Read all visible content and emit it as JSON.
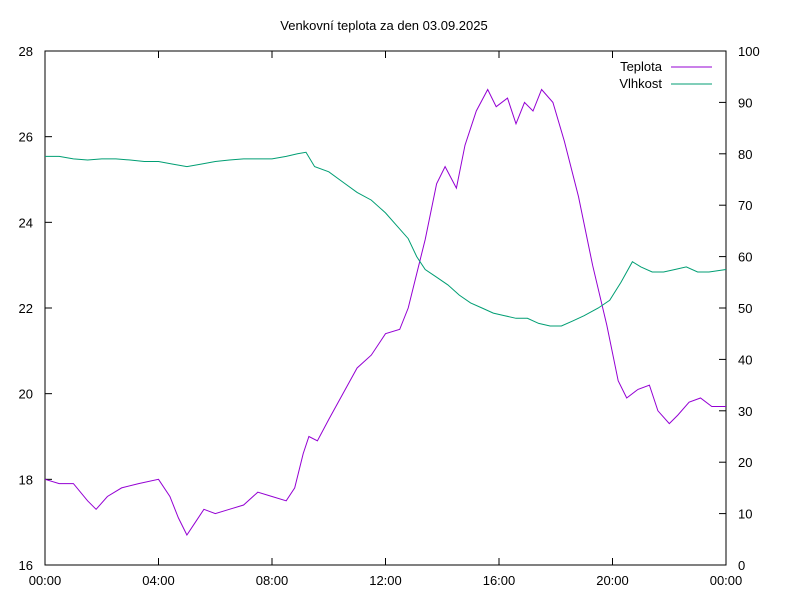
{
  "chart_data": {
    "type": "line",
    "title": "Venkovní teplota za den 03.09.2025",
    "xlim": [
      0,
      24
    ],
    "x_ticks": [
      "00:00",
      "04:00",
      "08:00",
      "12:00",
      "16:00",
      "20:00",
      "00:00"
    ],
    "ylim": [
      16,
      28
    ],
    "y_ticks": [
      "16",
      "18",
      "20",
      "22",
      "24",
      "26",
      "28"
    ],
    "y2lim": [
      0,
      100
    ],
    "y2_ticks": [
      "0",
      "10",
      "20",
      "30",
      "40",
      "50",
      "60",
      "70",
      "80",
      "90",
      "100"
    ],
    "legend": "top-right",
    "grid": false,
    "series": [
      {
        "name": "Teplota",
        "axis": "left",
        "color": "#9400d3",
        "x": [
          0,
          0.5,
          1,
          1.5,
          1.8,
          2.2,
          2.7,
          3.3,
          4,
          4.4,
          4.7,
          5,
          5.3,
          5.6,
          6,
          6.5,
          7,
          7.5,
          8,
          8.5,
          8.8,
          9.1,
          9.3,
          9.6,
          10,
          10.5,
          11,
          11.5,
          12,
          12.5,
          12.8,
          13.1,
          13.4,
          13.8,
          14.1,
          14.5,
          14.8,
          15.2,
          15.6,
          15.9,
          16.3,
          16.6,
          16.9,
          17.2,
          17.5,
          17.9,
          18.3,
          18.8,
          19.3,
          19.8,
          20.2,
          20.5,
          20.9,
          21.3,
          21.6,
          22,
          22.3,
          22.7,
          23.1,
          23.5,
          24
        ],
        "values": [
          18.0,
          17.9,
          17.9,
          17.5,
          17.3,
          17.6,
          17.8,
          17.9,
          18.0,
          17.6,
          17.1,
          16.7,
          17.0,
          17.3,
          17.2,
          17.3,
          17.4,
          17.7,
          17.6,
          17.5,
          17.8,
          18.6,
          19.0,
          18.9,
          19.4,
          20.0,
          20.6,
          20.9,
          21.4,
          21.5,
          22.0,
          22.8,
          23.6,
          24.9,
          25.3,
          24.8,
          25.8,
          26.6,
          27.1,
          26.7,
          26.9,
          26.3,
          26.8,
          26.6,
          27.1,
          26.8,
          25.9,
          24.6,
          23.0,
          21.6,
          20.3,
          19.9,
          20.1,
          20.2,
          19.6,
          19.3,
          19.5,
          19.8,
          19.9,
          19.7,
          19.7
        ]
      },
      {
        "name": "Vlhkost",
        "axis": "right",
        "color": "#009e73",
        "x": [
          0,
          0.5,
          1,
          1.5,
          2,
          2.5,
          3,
          3.5,
          4,
          4.5,
          5,
          5.5,
          6,
          6.5,
          7,
          7.5,
          8,
          8.5,
          8.9,
          9.2,
          9.5,
          10,
          10.5,
          11,
          11.5,
          12,
          12.4,
          12.8,
          13.1,
          13.4,
          13.8,
          14.2,
          14.6,
          15,
          15.4,
          15.8,
          16.2,
          16.6,
          17,
          17.4,
          17.8,
          18.2,
          18.6,
          19,
          19.5,
          19.9,
          20.3,
          20.7,
          21,
          21.4,
          21.8,
          22.2,
          22.6,
          23,
          23.4,
          24
        ],
        "values": [
          79.5,
          79.5,
          79.0,
          78.8,
          79.0,
          79.0,
          78.8,
          78.5,
          78.5,
          78.0,
          77.5,
          78.0,
          78.5,
          78.8,
          79.0,
          79.0,
          79.0,
          79.5,
          80.0,
          80.3,
          77.5,
          76.5,
          74.5,
          72.5,
          71.0,
          68.5,
          66.0,
          63.5,
          60.0,
          57.5,
          56.0,
          54.5,
          52.5,
          51.0,
          50.0,
          49.0,
          48.5,
          48.0,
          48.0,
          47.0,
          46.5,
          46.5,
          47.5,
          48.5,
          50.0,
          51.5,
          55.0,
          59.0,
          58.0,
          57.0,
          57.0,
          57.5,
          58.0,
          57.0,
          57.0,
          57.5
        ]
      }
    ]
  }
}
